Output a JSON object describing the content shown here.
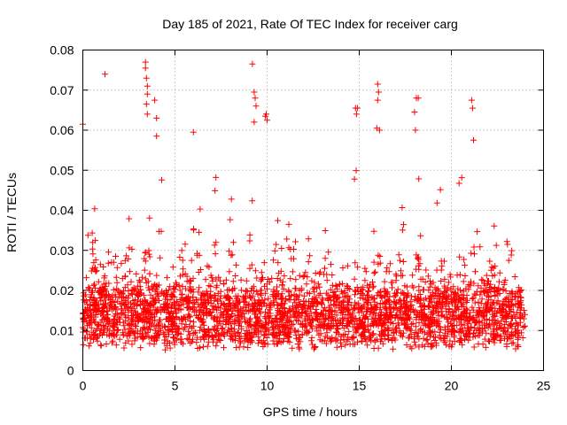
{
  "chart_data": {
    "type": "scatter",
    "title": "Day 185 of 2021, Rate Of TEC Index for receiver carg",
    "xlabel": "GPS time / hours",
    "ylabel": "ROTI / TECUs",
    "xlim": [
      0,
      25
    ],
    "ylim": [
      0,
      0.08
    ],
    "xticks": [
      0,
      5,
      10,
      15,
      20,
      25
    ],
    "yticks": [
      0,
      0.01,
      0.02,
      0.03,
      0.04,
      0.05,
      0.06,
      0.07,
      0.08
    ],
    "xtick_labels": [
      "0",
      "5",
      "10",
      "15",
      "20",
      "25"
    ],
    "ytick_labels": [
      "0",
      "0.01",
      "0.02",
      "0.03",
      "0.04",
      "0.05",
      "0.06",
      "0.07",
      "0.08"
    ],
    "grid": true,
    "marker": "+",
    "color": "#ff0000",
    "data_x_range": [
      0,
      24
    ],
    "notable_points": [
      {
        "x": 0.0,
        "y": 0.0615
      },
      {
        "x": 1.2,
        "y": 0.074
      },
      {
        "x": 3.4,
        "y": 0.077
      },
      {
        "x": 3.4,
        "y": 0.0755
      },
      {
        "x": 3.45,
        "y": 0.073
      },
      {
        "x": 3.5,
        "y": 0.071
      },
      {
        "x": 3.5,
        "y": 0.069
      },
      {
        "x": 3.45,
        "y": 0.0665
      },
      {
        "x": 3.5,
        "y": 0.064
      },
      {
        "x": 3.9,
        "y": 0.0675
      },
      {
        "x": 4.0,
        "y": 0.063
      },
      {
        "x": 4.0,
        "y": 0.0585
      },
      {
        "x": 6.0,
        "y": 0.0595
      },
      {
        "x": 9.2,
        "y": 0.0765
      },
      {
        "x": 9.3,
        "y": 0.0695
      },
      {
        "x": 9.35,
        "y": 0.068
      },
      {
        "x": 9.4,
        "y": 0.066
      },
      {
        "x": 9.3,
        "y": 0.062
      },
      {
        "x": 9.9,
        "y": 0.0635
      },
      {
        "x": 10.0,
        "y": 0.0625
      },
      {
        "x": 9.95,
        "y": 0.064
      },
      {
        "x": 14.8,
        "y": 0.0655
      },
      {
        "x": 14.9,
        "y": 0.0655
      },
      {
        "x": 14.85,
        "y": 0.064
      },
      {
        "x": 16.0,
        "y": 0.0715
      },
      {
        "x": 16.05,
        "y": 0.0695
      },
      {
        "x": 16.0,
        "y": 0.0675
      },
      {
        "x": 15.95,
        "y": 0.0605
      },
      {
        "x": 16.1,
        "y": 0.06
      },
      {
        "x": 18.1,
        "y": 0.068
      },
      {
        "x": 18.2,
        "y": 0.068
      },
      {
        "x": 18.0,
        "y": 0.0645
      },
      {
        "x": 18.05,
        "y": 0.06
      },
      {
        "x": 21.1,
        "y": 0.0675
      },
      {
        "x": 21.15,
        "y": 0.0655
      },
      {
        "x": 21.2,
        "y": 0.0575
      }
    ],
    "bulk_distribution": {
      "typical_min": 0.003,
      "typical_center": 0.012,
      "typical_upper": 0.03,
      "burst_upper": 0.05,
      "burst_hours": [
        0.5,
        1.5,
        2.5,
        3.5,
        4.3,
        5.3,
        6.2,
        7.2,
        8.2,
        9.3,
        10.5,
        11.3,
        12.2,
        13.3,
        14.8,
        16.0,
        17.2,
        18.2,
        19.3,
        20.5,
        21.3,
        22.2,
        23.3
      ]
    }
  }
}
